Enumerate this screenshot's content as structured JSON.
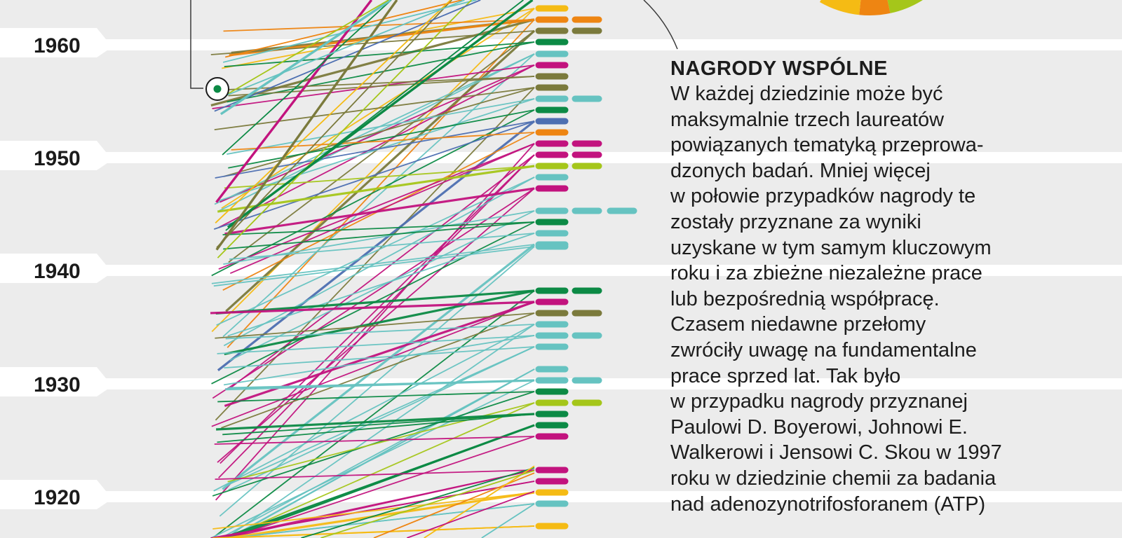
{
  "chart_data": {
    "type": "line",
    "y_ticks": [
      "1960",
      "1950",
      "1940",
      "1930",
      "1920"
    ],
    "colors": {
      "dark_green": "#0c8a45",
      "teal": "#66c3c1",
      "magenta": "#c2137e",
      "olive": "#7b7a3c",
      "lime": "#a5c61a",
      "orange": "#ee8512",
      "yellow": "#f5bb14",
      "blue": "#4d6fb1"
    },
    "callout_icon": "highlighted-laureate-marker-icon"
  },
  "text": {
    "title": "NAGRODY WSPÓLNE",
    "lines": [
      "W każdej dziedzinie może być",
      "maksymalnie trzech laureatów",
      "powiązanych tematyką przeprowa-",
      "dzonych badań. Mniej więcej",
      "w połowie przypadków nagrody te",
      "zostały przyznane za wyniki",
      "uzyskane w tym samym kluczowym",
      "roku i za zbieżne niezależne prace",
      "lub bezpośrednią współpracę.",
      "Czasem niedawne przełomy",
      "zwróciły uwagę na fundamentalne",
      "prace sprzed lat. Tak było",
      "w przypadku nagrody przyznanej",
      "Paulowi D. Boyerowi, Johnowi E.",
      "Walkerowi i Jensowi C. Skou w 1997",
      "roku w dziedzinie chemii za badania",
      "nad adenozynotrifosforanem (ATP)"
    ]
  }
}
